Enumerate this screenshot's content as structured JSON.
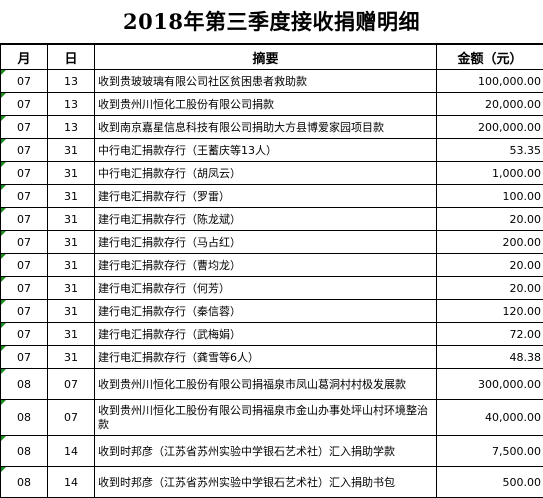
{
  "title": "2018年第三季度接收捐赠明细",
  "columns": {
    "month": "月",
    "day": "日",
    "description": "摘要",
    "amount": "金额（元）"
  },
  "rows": [
    {
      "month": "07",
      "day": "13",
      "description": "收到贵玻玻璃有限公司社区贫困患者救助款",
      "amount": "100,000.00"
    },
    {
      "month": "07",
      "day": "13",
      "description": "收到贵州川恒化工股份有限公司捐款",
      "amount": "20,000.00"
    },
    {
      "month": "07",
      "day": "13",
      "description": "收到南京嘉星信息科技有限公司捐助大方县博爱家园项目款",
      "amount": "200,000.00"
    },
    {
      "month": "07",
      "day": "31",
      "description": "中行电汇捐款存行（王蓄庆等13人）",
      "amount": "53.35"
    },
    {
      "month": "07",
      "day": "31",
      "description": "中行电汇捐款存行（胡凤云）",
      "amount": "1,000.00"
    },
    {
      "month": "07",
      "day": "31",
      "description": "建行电汇捐款存行（罗雷）",
      "amount": "100.00"
    },
    {
      "month": "07",
      "day": "31",
      "description": "建行电汇捐款存行（陈龙斌）",
      "amount": "20.00"
    },
    {
      "month": "07",
      "day": "31",
      "description": "建行电汇捐款存行（马占红）",
      "amount": "200.00"
    },
    {
      "month": "07",
      "day": "31",
      "description": "建行电汇捐款存行（曹均龙）",
      "amount": "20.00"
    },
    {
      "month": "07",
      "day": "31",
      "description": "建行电汇捐款存行（何芳）",
      "amount": "20.00"
    },
    {
      "month": "07",
      "day": "31",
      "description": "建行电汇捐款存行（秦信蓉）",
      "amount": "120.00"
    },
    {
      "month": "07",
      "day": "31",
      "description": "建行电汇捐款存行（武梅娟）",
      "amount": "72.00"
    },
    {
      "month": "07",
      "day": "31",
      "description": "建行电汇捐款存行（龚雪等6人）",
      "amount": "48.38"
    },
    {
      "month": "08",
      "day": "07",
      "description": "收到贵州川恒化工股份有限公司捐福泉市凤山葛洞村村极发展款",
      "amount": "300,000.00"
    },
    {
      "month": "08",
      "day": "07",
      "description": "收到贵州川恒化工股份有限公司捐福泉市金山办事处坪山村环境整治款",
      "amount": "40,000.00"
    },
    {
      "month": "08",
      "day": "14",
      "description": "收到时邦彦（江苏省苏州实验中学银石艺术社）汇入捐助学款",
      "amount": "7,500.00"
    },
    {
      "month": "08",
      "day": "14",
      "description": "收到时邦彦（江苏省苏州实验中学银石艺术社）汇入捐助书包",
      "amount": "500.00"
    }
  ],
  "colors": {
    "cell_flag": "#1a8a1a",
    "border": "#000000"
  }
}
